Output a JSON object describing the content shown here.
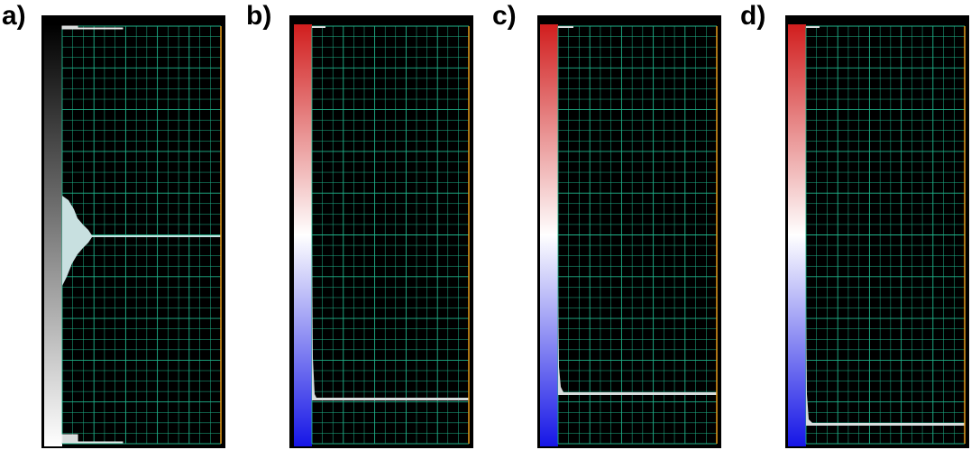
{
  "panels": [
    {
      "label": "a)",
      "colormap": "grayscale",
      "colors": [
        "#000000",
        "#ffffff"
      ],
      "histogram_spikes": [
        0.03,
        0.5,
        0.99
      ],
      "histogram_bulge_center": 0.5
    },
    {
      "label": "b)",
      "colormap": "diverging",
      "colors": [
        "#d11e1e",
        "#ffffff",
        "#1616e6"
      ],
      "histogram_plateau": 0.9
    },
    {
      "label": "c)",
      "colormap": "diverging",
      "colors": [
        "#d11e1e",
        "#ffffff",
        "#1616e6"
      ],
      "histogram_plateau": 0.88
    },
    {
      "label": "d)",
      "colormap": "diverging",
      "colors": [
        "#d11e1e",
        "#ffffff",
        "#1616e6"
      ],
      "histogram_plateau": 0.95
    }
  ],
  "grid_color": "#1fb38a",
  "marker_color": "#e69a1a"
}
